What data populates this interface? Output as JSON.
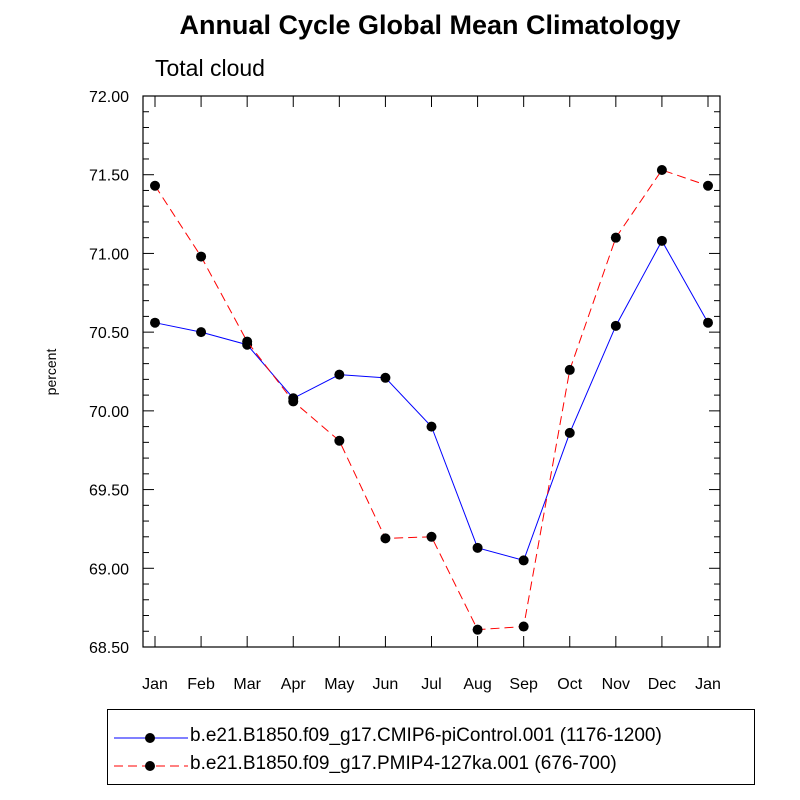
{
  "chart_data": {
    "type": "line",
    "title": "Annual Cycle Global Mean Climatology",
    "subtitle": "Total cloud",
    "xlabel": "",
    "ylabel": "percent",
    "categories": [
      "Jan",
      "Feb",
      "Mar",
      "Apr",
      "May",
      "Jun",
      "Jul",
      "Aug",
      "Sep",
      "Oct",
      "Nov",
      "Dec",
      "Jan"
    ],
    "ylim": [
      68.5,
      72.0
    ],
    "yticks": [
      "68.50",
      "69.00",
      "69.50",
      "70.00",
      "70.50",
      "71.00",
      "71.50",
      "72.00"
    ],
    "series": [
      {
        "name": "b.e21.B1850.f09_g17.CMIP6-piControl.001 (1176-1200)",
        "color": "#0000ff",
        "dash": "solid",
        "values": [
          70.56,
          70.5,
          70.42,
          70.08,
          70.23,
          70.21,
          69.9,
          69.13,
          69.05,
          69.86,
          70.54,
          71.08,
          70.56
        ]
      },
      {
        "name": "b.e21.B1850.f09_g17.PMIP4-127ka.001 (676-700)",
        "color": "#ff0000",
        "dash": "dashed",
        "values": [
          71.43,
          70.98,
          70.44,
          70.06,
          69.81,
          69.19,
          69.2,
          68.61,
          68.63,
          70.26,
          71.1,
          71.53,
          71.43
        ]
      }
    ]
  }
}
